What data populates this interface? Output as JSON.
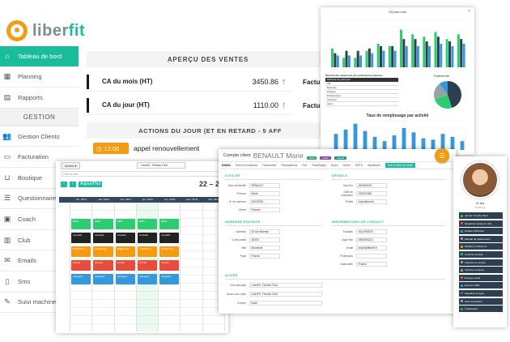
{
  "brand": {
    "prefix": "liber",
    "suffix": "fit",
    "accent": "#1abc9c",
    "orange": "#f39c12"
  },
  "sidebar": {
    "items": [
      {
        "label": "Tableau de bord",
        "icon": "home-icon",
        "active": true
      },
      {
        "label": "Planning",
        "icon": "calendar-icon"
      },
      {
        "label": "Rapports",
        "icon": "chart-icon"
      }
    ],
    "section": "GESTION",
    "items2": [
      {
        "label": "Gestion Clients",
        "icon": "users-icon"
      },
      {
        "label": "Facturation",
        "icon": "invoice-icon"
      },
      {
        "label": "Boutique",
        "icon": "basket-icon"
      },
      {
        "label": "Questionnaires",
        "icon": "list-icon"
      },
      {
        "label": "Coach",
        "icon": "coach-icon"
      },
      {
        "label": "Club",
        "icon": "building-icon"
      },
      {
        "label": "Emails",
        "icon": "envelope-icon"
      },
      {
        "label": "Sms",
        "icon": "phone-icon"
      },
      {
        "label": "Suivi machines",
        "icon": "wrench-icon"
      }
    ]
  },
  "dashboard": {
    "apercu_title": "APERÇU DES VENTES",
    "stats": [
      {
        "label": "CA du mois (HT)",
        "value": "3450.86"
      },
      {
        "label": "CA du jour (HT)",
        "value": "1110.00"
      }
    ],
    "facture_label": "Facture",
    "actions_title": "ACTIONS DU JOUR (ET EN RETARD - 5 AFF",
    "action_time": "12:00",
    "action_label": "appel renouvellement"
  },
  "chart_window": {
    "title": "CA par mois",
    "table_title": "Montant des paiements par méthode de paiement",
    "table_header": [
      "Méthode de paiement",
      "Montant"
    ],
    "table_rows": [
      "CB",
      "Espèces",
      "Chèque",
      "Prélèvement",
      "Virement",
      "Avoir"
    ],
    "pie_title": "Paiements",
    "taux_title": "Taux de remplissage par activité",
    "chart_data": [
      {
        "type": "bar",
        "title": "CA par mois",
        "series": [
          {
            "name": "",
            "color": "#2ecc71",
            "values": [
              40,
              20,
              20,
              35,
              50,
              45,
              80,
              70,
              65,
              75,
              60,
              70
            ]
          },
          {
            "name": "",
            "color": "#2c3e50",
            "values": [
              30,
              35,
              35,
              40,
              45,
              45,
              60,
              60,
              55,
              65,
              55,
              60
            ]
          },
          {
            "name": "",
            "color": "#3498db",
            "values": [
              25,
              25,
              25,
              30,
              35,
              35,
              45,
              45,
              45,
              50,
              45,
              50
            ]
          }
        ]
      },
      {
        "type": "pie",
        "title": "Paiements",
        "values": [
          45,
          25,
          20,
          10
        ],
        "colors": [
          "#2c3e50",
          "#2ecc71",
          "#95a5a6",
          "#3498db"
        ]
      },
      {
        "type": "bar",
        "title": "Taux de remplissage par activité",
        "values": [
          55,
          70,
          90,
          65,
          45,
          30,
          50,
          75,
          60,
          40,
          35,
          55,
          45,
          30
        ],
        "color": "#3498db"
      }
    ]
  },
  "agenda": {
    "action_button": "Action",
    "club_select": "Liberfit - Fitness Club",
    "search_placeholder": "Filtre la liste",
    "today_label": "Aujourd'hui",
    "range": "22 – 28",
    "days": [
      "lun. 22/11",
      "mar. 23/11",
      "mer. 24/11",
      "jeu. 25/11",
      "ven. 26/11",
      "sam. 27/11",
      "dim. 28/11"
    ],
    "events": [
      {
        "col": 0,
        "slot": 0,
        "label": "RPM",
        "color": "#2ecc71"
      },
      {
        "col": 1,
        "slot": 0,
        "label": "RPM",
        "color": "#2ecc71"
      },
      {
        "col": 2,
        "slot": 0,
        "label": "RPM",
        "color": "#2ecc71"
      },
      {
        "col": 3,
        "slot": 0,
        "label": "RPM",
        "color": "#2ecc71"
      },
      {
        "col": 4,
        "slot": 0,
        "label": "RPM",
        "color": "#2ecc71"
      },
      {
        "col": 0,
        "slot": 1,
        "label": "CrossFit",
        "color": "#222222"
      },
      {
        "col": 1,
        "slot": 1,
        "label": "CrossFit",
        "color": "#222222"
      },
      {
        "col": 2,
        "slot": 1,
        "label": "CrossFit",
        "color": "#222222"
      },
      {
        "col": 3,
        "slot": 1,
        "label": "CrossFit",
        "color": "#222222"
      },
      {
        "col": 4,
        "slot": 1,
        "label": "CrossFit",
        "color": "#222222"
      },
      {
        "col": 0,
        "slot": 2,
        "label": "BodyPump",
        "color": "#f39c12"
      },
      {
        "col": 1,
        "slot": 2,
        "label": "BodyPump",
        "color": "#f39c12"
      },
      {
        "col": 2,
        "slot": 2,
        "label": "BodyPump",
        "color": "#f39c12"
      },
      {
        "col": 3,
        "slot": 2,
        "label": "BodyPump",
        "color": "#f39c12"
      },
      {
        "col": 4,
        "slot": 2,
        "label": "BodyPump",
        "color": "#f39c12"
      },
      {
        "col": 0,
        "slot": 3,
        "label": "Zumba",
        "color": "#e74c3c"
      },
      {
        "col": 1,
        "slot": 3,
        "label": "Zumba",
        "color": "#e74c3c"
      },
      {
        "col": 2,
        "slot": 3,
        "label": "Zumba",
        "color": "#e74c3c"
      },
      {
        "col": 3,
        "slot": 3,
        "label": "Zumba",
        "color": "#e74c3c"
      },
      {
        "col": 4,
        "slot": 3,
        "label": "Zumba",
        "color": "#e74c3c"
      },
      {
        "col": 0,
        "slot": 4,
        "label": "Aquagym",
        "color": "#3498db"
      },
      {
        "col": 1,
        "slot": 4,
        "label": "Aquagym",
        "color": "#3498db"
      },
      {
        "col": 2,
        "slot": 4,
        "label": "Aquagym",
        "color": "#3498db"
      },
      {
        "col": 3,
        "slot": 4,
        "label": "Aquagym",
        "color": "#3498db"
      },
      {
        "col": 4,
        "slot": 4,
        "label": "Aquagym",
        "color": "#3498db"
      }
    ]
  },
  "client": {
    "title": "Compte client",
    "name": "BENAULT Marie",
    "badges": [
      {
        "label": "Actif",
        "color": "#27ae60"
      },
      {
        "label": "Coach",
        "color": "#8e44ad"
      },
      {
        "label": "Liberfit",
        "color": "#16a085"
      }
    ],
    "tabs": [
      "Détails",
      "Suivi & formulaires",
      "Paramètres",
      "Réclamations",
      "Rdv",
      "Parrainages",
      "Notes",
      "Accès",
      "RGPD",
      "Signatures"
    ],
    "history_button": "Voir la fiche de santé",
    "sections": {
      "civilite": "CIVILITÉ",
      "details": "DÉTAILS",
      "adresse": "ADRESSE POSTALE",
      "contact": "INFORMATIONS DE CONTACT",
      "acces": "ACCÈS"
    },
    "civilite_fields": [
      {
        "label": "Nom de famille",
        "value": "BENAULT"
      },
      {
        "label": "Prénom",
        "value": "Marie"
      },
      {
        "label": "Nº de membre",
        "value": "00032756"
      },
      {
        "label": "Genre",
        "value": "Femme"
      }
    ],
    "details_fields": [
      {
        "label": "Inscrit le",
        "value": "15/06/2020"
      },
      {
        "label": "Date de naissance",
        "value": "15/02/1985"
      },
      {
        "label": "Profils",
        "value": "Actuellement"
      }
    ],
    "adresse_fields": [
      {
        "label": "Adresse",
        "value": "92 rue Moreau"
      },
      {
        "label": "Code postal",
        "value": "30000"
      },
      {
        "label": "Ville",
        "value": "Montreuil"
      },
      {
        "label": "Pays",
        "value": "France"
      }
    ],
    "contact_fields": [
      {
        "label": "Portable",
        "value": "0611094578"
      },
      {
        "label": "Ligne fixe",
        "value": "0553043221"
      },
      {
        "label": "Email",
        "value": "marie@liberfit.fr"
      },
      {
        "label": "Profession",
        "value": ""
      },
      {
        "label": "Nationalité",
        "value": "France"
      }
    ],
    "acces_fields": [
      {
        "label": "Club principal",
        "value": "LiberFit - Fitness Club"
      },
      {
        "label": "Accès aux clubs",
        "value": "LiberFit - Fitness Club"
      },
      {
        "label": "Groupe",
        "value": "Boxe"
      }
    ]
  },
  "profile": {
    "age": "41 ans",
    "subtitle": "Sommeur",
    "actions": [
      {
        "label": "Ajouter Compte client",
        "color": "#2ecc71"
      },
      {
        "label": "Désactiver accès au club",
        "color": "#e74c3c"
      },
      {
        "label": "Gestion d'Abonné",
        "color": "#3498db"
      },
      {
        "label": "Mandat de prélèvement",
        "color": "#95a5a6"
      },
      {
        "label": "Modifier le Paiement",
        "color": "#f39c12"
      },
      {
        "label": "Contrôle d'entrée",
        "color": "#1abc9c"
      },
      {
        "label": "Imprimer le compte",
        "color": "#95a5a6"
      },
      {
        "label": "Imprimer le bonus",
        "color": "#95a5a6"
      },
      {
        "label": "Envoyer email",
        "color": "#e74c3c"
      },
      {
        "label": "Envoyer SMS",
        "color": "#3498db"
      },
      {
        "label": "Signature en ligne",
        "color": "#8e44ad"
      },
      {
        "label": "Liste réservation",
        "color": "#95a5a6"
      },
      {
        "label": "À Réception",
        "color": "#27ae60"
      }
    ]
  }
}
